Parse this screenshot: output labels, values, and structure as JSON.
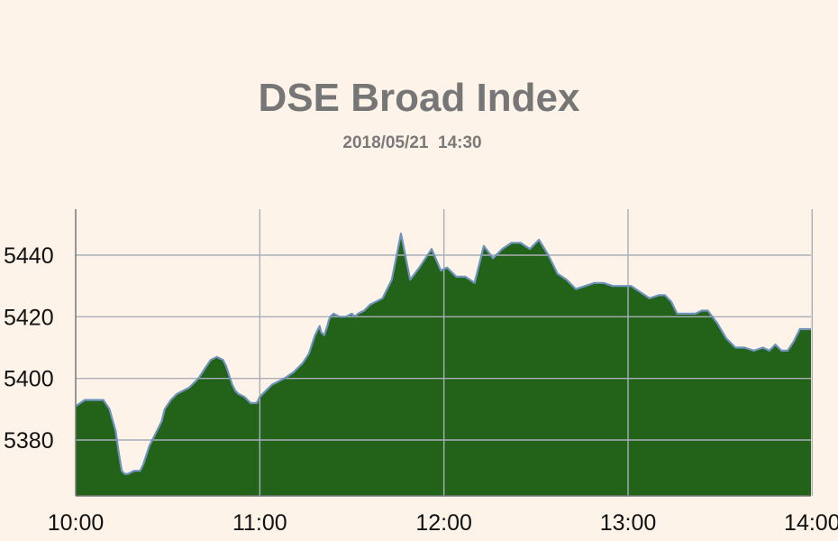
{
  "chart_data": {
    "type": "area",
    "title": "DSE Broad Index",
    "subtitle": "2018/05/21  14:30",
    "xlabel": "",
    "ylabel": "",
    "x_tick_labels": [
      "10:00",
      "11:00",
      "12:00",
      "13:00",
      "14:00"
    ],
    "y_tick_labels": [
      "5380",
      "5400",
      "5420",
      "5440"
    ],
    "y_ticks": [
      5380,
      5400,
      5420,
      5440
    ],
    "ylim": [
      5362,
      5456
    ],
    "xlim_minutes": [
      0,
      240
    ],
    "grid": true,
    "colors": {
      "fill": "#236319",
      "line": "#6f93bd",
      "grid": "#a9aeb8",
      "background": "#fdf3e8"
    },
    "x": [
      0,
      3,
      6,
      9,
      11,
      13,
      14,
      15,
      16,
      17,
      19,
      21,
      22,
      24,
      26,
      28,
      29,
      31,
      33,
      35,
      37,
      38,
      40,
      42,
      44,
      46,
      48,
      49,
      50,
      51,
      52,
      53,
      55,
      57,
      59,
      60,
      62,
      64,
      66,
      68,
      71,
      74,
      76,
      78,
      79,
      79.5,
      80,
      81,
      82,
      82.5,
      83,
      84,
      86,
      88,
      90,
      91,
      92,
      94,
      95,
      96,
      98,
      100,
      103,
      106,
      109,
      112,
      116,
      119,
      121,
      124,
      127,
      130,
      133,
      136,
      139,
      142,
      145,
      148,
      151,
      154,
      157,
      160,
      163,
      166,
      169,
      172,
      175,
      178,
      181,
      184,
      187,
      190,
      192,
      194,
      196,
      198,
      200,
      202,
      204,
      206,
      209,
      212,
      215,
      218,
      221,
      224,
      226,
      228,
      230,
      232,
      234,
      236,
      238,
      240
    ],
    "values": [
      5391,
      5393,
      5393,
      5393,
      5390,
      5383,
      5376,
      5370,
      5369,
      5369,
      5370,
      5370,
      5372,
      5378,
      5382,
      5386,
      5390,
      5393,
      5395,
      5396,
      5397,
      5398,
      5400,
      5403,
      5406,
      5407,
      5406,
      5404,
      5401,
      5398,
      5396,
      5395,
      5394,
      5392,
      5392,
      5394,
      5396,
      5398,
      5399,
      5400,
      5402,
      5405,
      5408,
      5414,
      5416,
      5417,
      5415,
      5414,
      5417,
      5419,
      5420,
      5421,
      5420,
      5420,
      5421,
      5420,
      5421,
      5422,
      5423,
      5424,
      5425,
      5426,
      5432,
      5447,
      5432,
      5436,
      5442,
      5435,
      5436,
      5433,
      5433,
      5431,
      5443,
      5439,
      5442,
      5444,
      5444,
      5442,
      5445,
      5440,
      5434,
      5432,
      5429,
      5430,
      5431,
      5431,
      5430,
      5430,
      5430,
      5428,
      5426,
      5427,
      5427,
      5425,
      5421,
      5421,
      5421,
      5421,
      5422,
      5422,
      5418,
      5413,
      5410,
      5410,
      5409,
      5410,
      5409,
      5411,
      5409,
      5409,
      5412,
      5416,
      5416,
      5416
    ]
  }
}
